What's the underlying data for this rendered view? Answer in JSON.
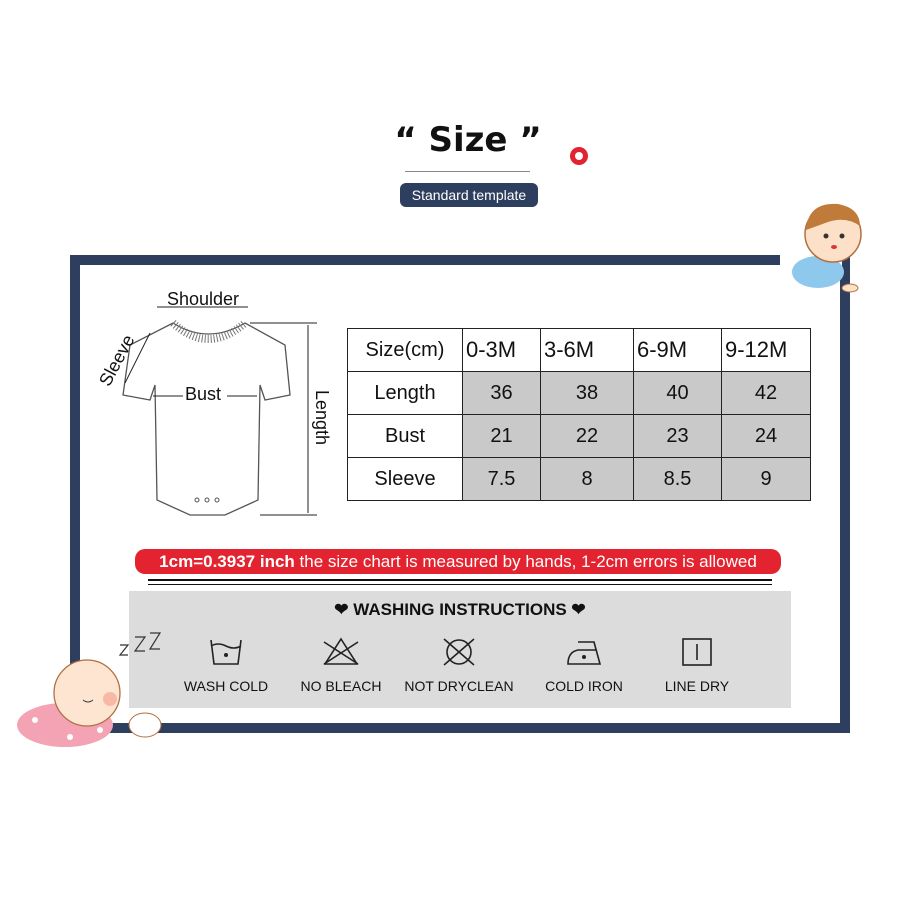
{
  "header": {
    "title": "“ Size ”",
    "subtitle": "Standard template"
  },
  "diagram": {
    "shoulder": "Shoulder",
    "sleeve": "Sleeve",
    "bust": "Bust",
    "length": "Length"
  },
  "table": {
    "headers": [
      "Size(cm)",
      "0-3M",
      "3-6M",
      "6-9M",
      "9-12M"
    ],
    "rows": [
      {
        "label": "Length",
        "values": [
          "36",
          "38",
          "40",
          "42"
        ]
      },
      {
        "label": "Bust",
        "values": [
          "21",
          "22",
          "23",
          "24"
        ]
      },
      {
        "label": "Sleeve",
        "values": [
          "7.5",
          "8",
          "8.5",
          "9"
        ]
      }
    ]
  },
  "note": {
    "bold": "1cm=0.3937 inch",
    "rest": " the size chart is measured by hands, 1-2cm errors is allowed",
    "color": "#e42330"
  },
  "washing": {
    "title": "❤  WASHING INSTRUCTIONS  ❤",
    "items": [
      {
        "label": "WASH COLD",
        "icon": "wash-cold-icon"
      },
      {
        "label": "NO BLEACH",
        "icon": "no-bleach-icon"
      },
      {
        "label": "NOT DRYCLEAN",
        "icon": "no-dryclean-icon"
      },
      {
        "label": "COLD IRON",
        "icon": "cold-iron-icon"
      },
      {
        "label": "LINE DRY",
        "icon": "line-dry-icon"
      }
    ]
  },
  "colors": {
    "navy": "#2d3e5e",
    "red": "#e42330",
    "gray": "#dcdcdc"
  }
}
